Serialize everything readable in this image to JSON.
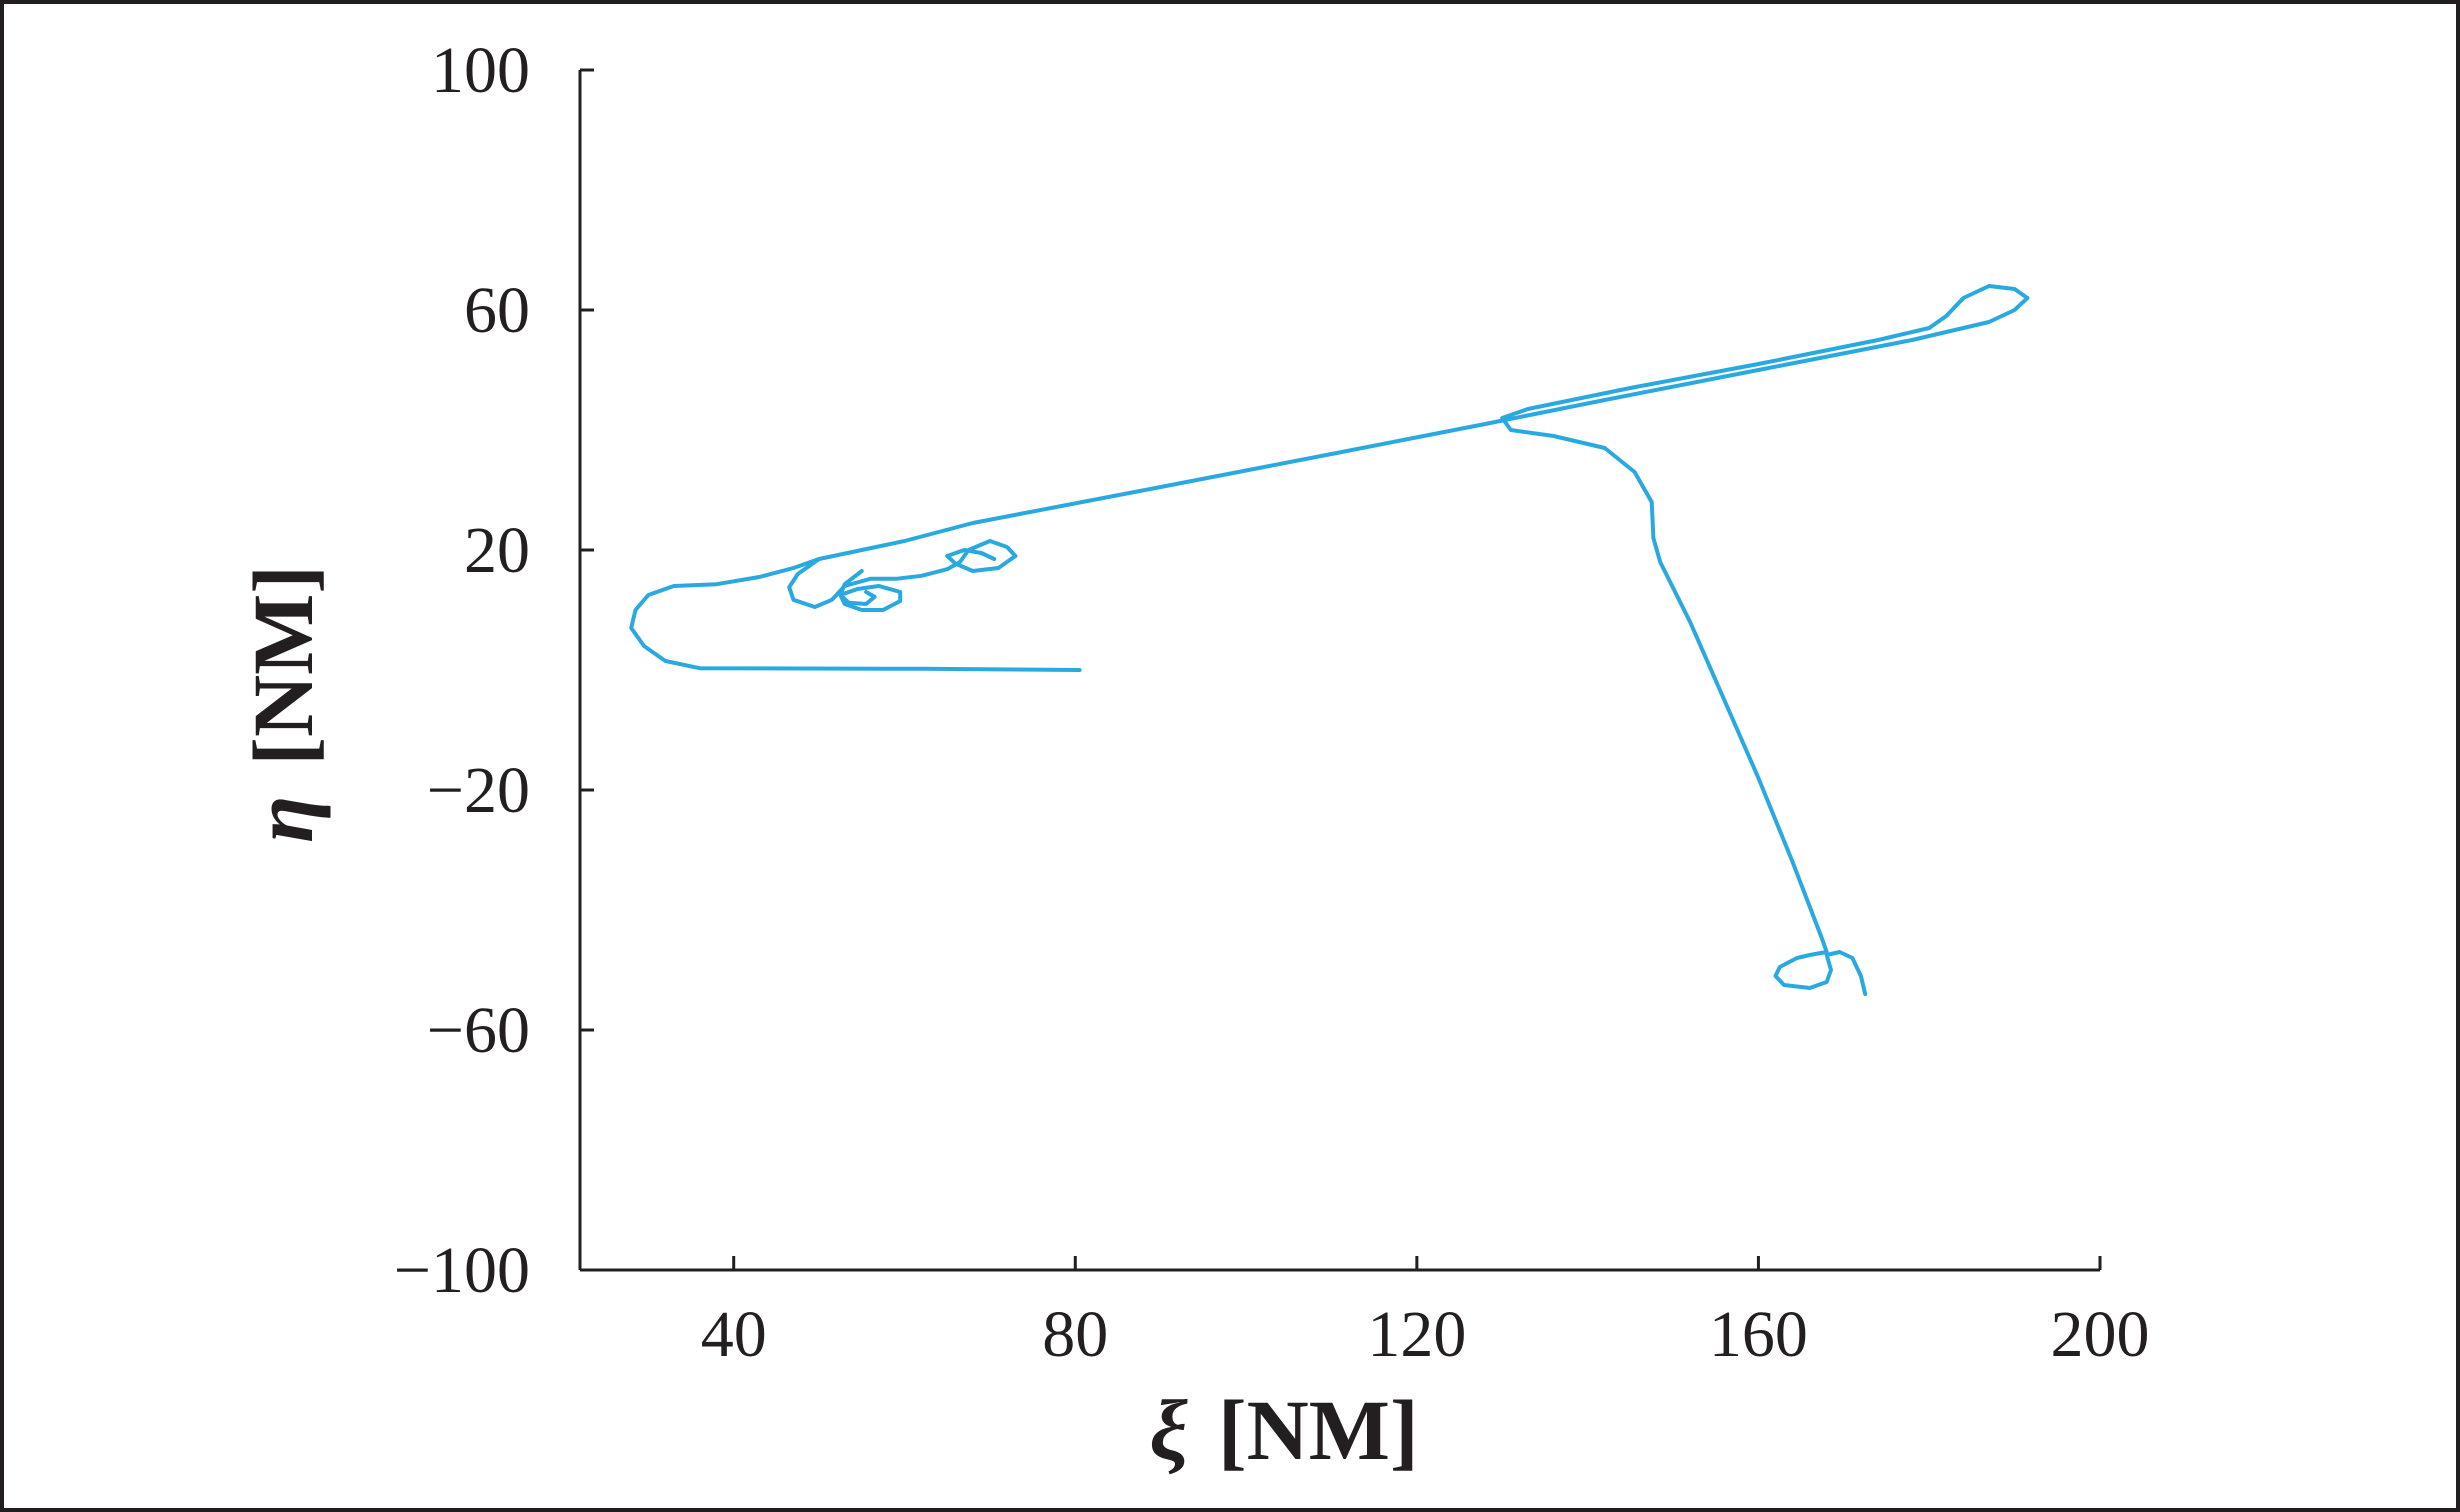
{
  "chart_data": {
    "type": "line",
    "title": "",
    "xlabel": {
      "symbol": "ξ",
      "unit": "[NM]"
    },
    "ylabel": {
      "symbol": "η",
      "unit": "[NM]"
    },
    "xlim": [
      22,
      200
    ],
    "ylim": [
      -100,
      100
    ],
    "xticks": [
      40,
      80,
      120,
      160,
      200
    ],
    "yticks": [
      -100,
      -60,
      -20,
      20,
      60,
      100
    ],
    "grid": false,
    "legend": "none",
    "series": [
      {
        "color": "#29a9e0",
        "points": [
          [
            80.5,
            0
          ],
          [
            62,
            0.2
          ],
          [
            36,
            0.3
          ],
          [
            32,
            1.5
          ],
          [
            29.5,
            4
          ],
          [
            28,
            7
          ],
          [
            28.5,
            10
          ],
          [
            30,
            12.5
          ],
          [
            33,
            14
          ],
          [
            38,
            14.3
          ],
          [
            43,
            15.5
          ],
          [
            47,
            17
          ],
          [
            50,
            18.5
          ],
          [
            55,
            20
          ],
          [
            60,
            21.5
          ],
          [
            64,
            23
          ],
          [
            68,
            24.5
          ],
          [
            90,
            30.5
          ],
          [
            110,
            36
          ],
          [
            128,
            41
          ],
          [
            142,
            45
          ],
          [
            160,
            50
          ],
          [
            178,
            55
          ],
          [
            187,
            58
          ],
          [
            190,
            60
          ],
          [
            191.5,
            62
          ],
          [
            190,
            63.5
          ],
          [
            187,
            64
          ],
          [
            184,
            62
          ],
          [
            182,
            59
          ],
          [
            180,
            57
          ],
          [
            174,
            55
          ],
          [
            160,
            51
          ],
          [
            145,
            47
          ],
          [
            133,
            43.5
          ],
          [
            130,
            42
          ],
          [
            131,
            40
          ],
          [
            136,
            39
          ],
          [
            142,
            37
          ],
          [
            145.5,
            33
          ],
          [
            147.5,
            28
          ],
          [
            147.7,
            22
          ],
          [
            148.5,
            18
          ],
          [
            152,
            8
          ],
          [
            156,
            -5
          ],
          [
            160,
            -18
          ],
          [
            164,
            -32
          ],
          [
            167.5,
            -45
          ],
          [
            168,
            -47
          ],
          [
            166,
            -47.5
          ],
          [
            164.5,
            -48
          ],
          [
            162.5,
            -49.5
          ],
          [
            162,
            -51
          ],
          [
            163,
            -52.5
          ],
          [
            166,
            -53
          ],
          [
            168,
            -52
          ],
          [
            168.5,
            -50
          ],
          [
            168,
            -47.5
          ],
          [
            169.5,
            -47
          ],
          [
            171,
            -48
          ],
          [
            172,
            -51
          ],
          [
            172.5,
            -54
          ]
        ]
      },
      {
        "color": "#29a9e0",
        "points": [
          [
            50,
            18.5
          ],
          [
            47.5,
            16
          ],
          [
            46.5,
            13.8
          ],
          [
            47,
            11.7
          ],
          [
            49.5,
            10.5
          ],
          [
            51.5,
            11.7
          ],
          [
            53,
            14
          ],
          [
            56,
            15.2
          ],
          [
            59,
            15.2
          ],
          [
            62,
            15.7
          ],
          [
            65,
            16.8
          ],
          [
            66.5,
            18
          ],
          [
            67.5,
            20
          ],
          [
            70,
            21.5
          ],
          [
            72,
            20.5
          ],
          [
            73,
            19
          ],
          [
            71,
            17
          ],
          [
            68,
            16.5
          ],
          [
            66,
            17.7
          ],
          [
            65,
            19
          ],
          [
            67,
            20
          ],
          [
            69,
            19.5
          ],
          [
            70.5,
            18.5
          ]
        ]
      },
      {
        "color": "#29a9e0",
        "points": [
          [
            55,
            16.5
          ],
          [
            53,
            14.3
          ],
          [
            52.5,
            12.5
          ],
          [
            53,
            11
          ],
          [
            55,
            10
          ],
          [
            57.5,
            10
          ],
          [
            59.5,
            11.5
          ],
          [
            59.5,
            13
          ],
          [
            57,
            14
          ],
          [
            54.5,
            13.5
          ],
          [
            52.5,
            12.5
          ],
          [
            53.5,
            11.2
          ],
          [
            55.5,
            11
          ],
          [
            56.5,
            12.2
          ],
          [
            55.5,
            13
          ]
        ]
      }
    ]
  }
}
